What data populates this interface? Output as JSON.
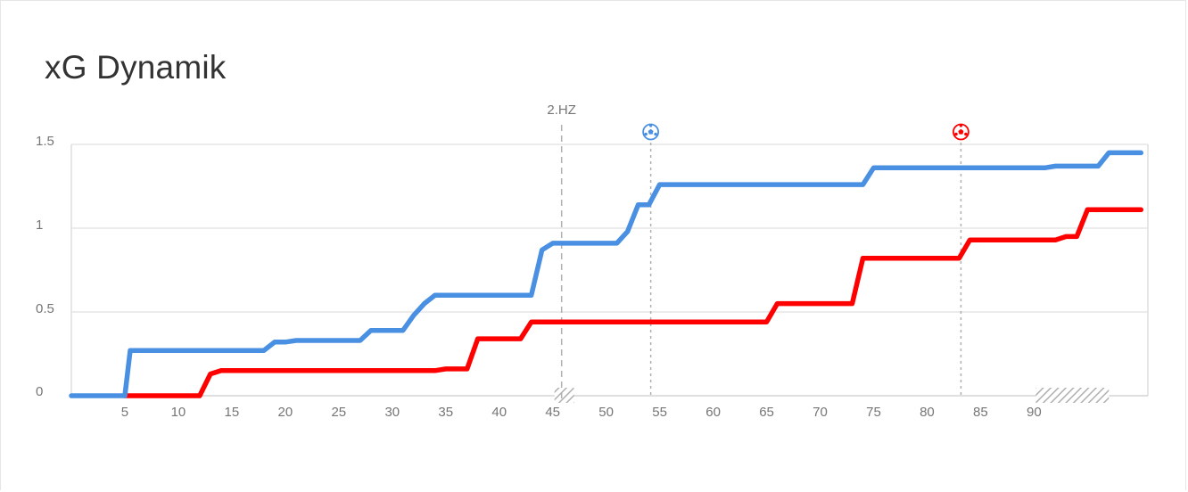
{
  "title": "xG Dynamik",
  "colors": {
    "home": "#4a90e2",
    "away": "#ff0000",
    "grid": "#e0e0e0",
    "axis_text": "#757575",
    "title": "#333333"
  },
  "chart_data": {
    "type": "line",
    "title": "xG Dynamik",
    "xlabel": "",
    "ylabel": "",
    "xlim": [
      0,
      96
    ],
    "ylim": [
      0,
      1.5
    ],
    "x_ticks": [
      "5",
      "10",
      "15",
      "20",
      "25",
      "30",
      "35",
      "40",
      "45",
      "50",
      "55",
      "60",
      "65",
      "70",
      "75",
      "80",
      "85",
      "90"
    ],
    "y_ticks": [
      "0",
      "0.5",
      "1",
      "1.5"
    ],
    "grid": true,
    "legend": "none",
    "halftime": {
      "minute": 45,
      "label": "2.HZ"
    },
    "extra_time_hatch": [
      [
        45,
        46
      ],
      [
        90,
        96
      ]
    ],
    "goals": [
      {
        "minute": 54,
        "team": "home",
        "icon": "soccer-ball-icon"
      },
      {
        "minute": 83,
        "team": "away",
        "icon": "soccer-ball-icon"
      }
    ],
    "series": [
      {
        "team": "home",
        "color": "#4a90e2",
        "points": [
          [
            0,
            0
          ],
          [
            5,
            0
          ],
          [
            5.5,
            0.27
          ],
          [
            18,
            0.27
          ],
          [
            19,
            0.32
          ],
          [
            20,
            0.32
          ],
          [
            21,
            0.33
          ],
          [
            27,
            0.33
          ],
          [
            28,
            0.39
          ],
          [
            31,
            0.39
          ],
          [
            32,
            0.48
          ],
          [
            33,
            0.55
          ],
          [
            34,
            0.6
          ],
          [
            43,
            0.6
          ],
          [
            44,
            0.87
          ],
          [
            45,
            0.91
          ],
          [
            51,
            0.91
          ],
          [
            52,
            0.98
          ],
          [
            53,
            1.14
          ],
          [
            54,
            1.14
          ],
          [
            55,
            1.26
          ],
          [
            74,
            1.26
          ],
          [
            75,
            1.36
          ],
          [
            91,
            1.36
          ],
          [
            92,
            1.37
          ],
          [
            96,
            1.37
          ],
          [
            97,
            1.45
          ],
          [
            100,
            1.45
          ]
        ]
      },
      {
        "team": "away",
        "color": "#ff0000",
        "points": [
          [
            5,
            0
          ],
          [
            12,
            0
          ],
          [
            13,
            0.13
          ],
          [
            14,
            0.15
          ],
          [
            34,
            0.15
          ],
          [
            35,
            0.16
          ],
          [
            37,
            0.16
          ],
          [
            38,
            0.34
          ],
          [
            42,
            0.34
          ],
          [
            43,
            0.44
          ],
          [
            65,
            0.44
          ],
          [
            66,
            0.55
          ],
          [
            73,
            0.55
          ],
          [
            74,
            0.82
          ],
          [
            83,
            0.82
          ],
          [
            84,
            0.93
          ],
          [
            92,
            0.93
          ],
          [
            93,
            0.95
          ],
          [
            94,
            0.95
          ],
          [
            95,
            1.11
          ],
          [
            100,
            1.11
          ]
        ]
      }
    ]
  }
}
